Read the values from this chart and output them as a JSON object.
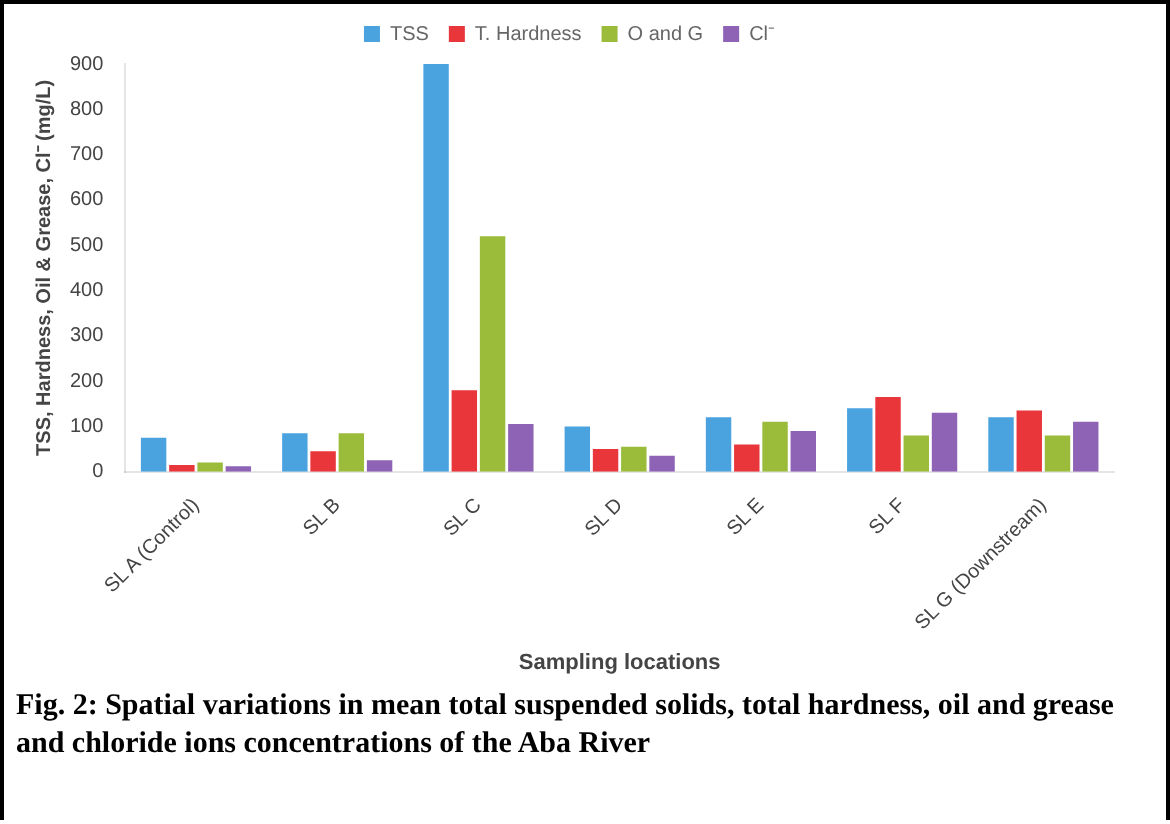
{
  "chart_data": {
    "type": "bar",
    "title": "Fig. 2: Spatial variations in mean total suspended solids, total hardness, oil and grease and chloride ions concentrations of the Aba River",
    "xlabel": "Sampling locations",
    "ylabel": "TSS, Hardness, Oil & Grease, Cl⁻ (mg/L)",
    "categories": [
      "SL A (Control)",
      "SL B",
      "SL C",
      "SL D",
      "SL E",
      "SL F",
      "SL G (Downstream)"
    ],
    "series": [
      {
        "name": "TSS",
        "color": "#4aa3df",
        "values": [
          75,
          85,
          900,
          100,
          120,
          140,
          120
        ]
      },
      {
        "name": "T. Hardness",
        "color": "#e8363b",
        "values": [
          15,
          45,
          180,
          50,
          60,
          165,
          135
        ]
      },
      {
        "name": "O and G",
        "color": "#9bbb3b",
        "values": [
          20,
          85,
          520,
          55,
          110,
          80,
          80
        ]
      },
      {
        "name": "Cl⁻",
        "color": "#8e62b5",
        "values": [
          12,
          25,
          105,
          35,
          90,
          130,
          110
        ]
      }
    ],
    "ylim": [
      0,
      900
    ],
    "yticks": [
      0,
      100,
      200,
      300,
      400,
      500,
      600,
      700,
      800,
      900
    ],
    "grid": false,
    "legend": "top"
  }
}
